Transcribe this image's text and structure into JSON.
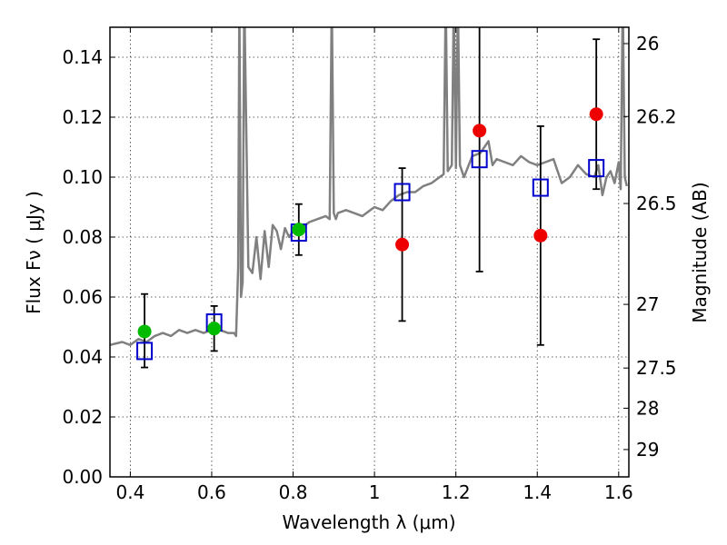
{
  "chart_data": {
    "type": "scatter",
    "xlabel": "Wavelength  λ (μm)",
    "ylabel": "Flux  Fν ( μJy )",
    "y2label": "Magnitude (AB)",
    "xlim": [
      0.35,
      1.625
    ],
    "ylim": [
      0.0,
      0.15
    ],
    "x_ticks": [
      {
        "value": 0.4,
        "label": "0.4"
      },
      {
        "value": 0.6,
        "label": "0.6"
      },
      {
        "value": 0.8,
        "label": "0.8"
      },
      {
        "value": 1.0,
        "label": "1"
      },
      {
        "value": 1.2,
        "label": "1.2"
      },
      {
        "value": 1.4,
        "label": "1.4"
      },
      {
        "value": 1.6,
        "label": "1.6"
      }
    ],
    "y_ticks": [
      {
        "value": 0.0,
        "label": "0.00"
      },
      {
        "value": 0.02,
        "label": "0.02"
      },
      {
        "value": 0.04,
        "label": "0.04"
      },
      {
        "value": 0.06,
        "label": "0.06"
      },
      {
        "value": 0.08,
        "label": "0.08"
      },
      {
        "value": 0.1,
        "label": "0.10"
      },
      {
        "value": 0.12,
        "label": "0.12"
      },
      {
        "value": 0.14,
        "label": "0.14"
      }
    ],
    "y2_ticks": [
      {
        "value": 26,
        "label": "26"
      },
      {
        "value": 26.2,
        "label": "26.2"
      },
      {
        "value": 26.5,
        "label": "26.5"
      },
      {
        "value": 27,
        "label": "27"
      },
      {
        "value": 27.5,
        "label": "27.5"
      },
      {
        "value": 28,
        "label": "28"
      },
      {
        "value": 29,
        "label": "29"
      }
    ],
    "grid": true,
    "colors": {
      "green_points": "#00bb00",
      "red_points": "#ee0000",
      "model_boxes": "#0000cc",
      "template": "#808080",
      "errorbar": "#000000"
    },
    "green_points": [
      {
        "x": 0.435,
        "y": 0.0485,
        "err_low": 0.012,
        "err_high": 0.0125
      },
      {
        "x": 0.606,
        "y": 0.0495,
        "err_low": 0.0075,
        "err_high": 0.0075
      },
      {
        "x": 0.814,
        "y": 0.0825,
        "err_low": 0.0085,
        "err_high": 0.0085
      }
    ],
    "red_points": [
      {
        "x": 1.068,
        "y": 0.0775,
        "err_low": 0.0255,
        "err_high": 0.0255
      },
      {
        "x": 1.258,
        "y": 0.1155,
        "err_low": 0.047,
        "err_high": 0.047
      },
      {
        "x": 1.408,
        "y": 0.0805,
        "err_low": 0.0365,
        "err_high": 0.0365
      },
      {
        "x": 1.545,
        "y": 0.121,
        "err_low": 0.025,
        "err_high": 0.025
      }
    ],
    "model_boxes": [
      {
        "x": 0.435,
        "y": 0.042
      },
      {
        "x": 0.606,
        "y": 0.0515
      },
      {
        "x": 0.814,
        "y": 0.0815
      },
      {
        "x": 1.068,
        "y": 0.095
      },
      {
        "x": 1.258,
        "y": 0.106
      },
      {
        "x": 1.408,
        "y": 0.0965
      },
      {
        "x": 1.545,
        "y": 0.103
      }
    ],
    "template_spectrum": {
      "x": [
        0.35,
        0.38,
        0.4,
        0.42,
        0.44,
        0.46,
        0.48,
        0.5,
        0.52,
        0.54,
        0.56,
        0.58,
        0.6,
        0.62,
        0.64,
        0.655,
        0.66,
        0.665,
        0.668,
        0.672,
        0.676,
        0.68,
        0.69,
        0.7,
        0.71,
        0.72,
        0.73,
        0.74,
        0.75,
        0.76,
        0.77,
        0.78,
        0.79,
        0.8,
        0.82,
        0.84,
        0.86,
        0.88,
        0.89,
        0.895,
        0.9,
        0.905,
        0.91,
        0.93,
        0.95,
        0.97,
        0.99,
        1.0,
        1.02,
        1.04,
        1.06,
        1.08,
        1.1,
        1.12,
        1.14,
        1.16,
        1.17,
        1.175,
        1.18,
        1.19,
        1.195,
        1.2,
        1.205,
        1.21,
        1.22,
        1.24,
        1.26,
        1.28,
        1.29,
        1.3,
        1.32,
        1.34,
        1.36,
        1.38,
        1.4,
        1.42,
        1.44,
        1.46,
        1.48,
        1.5,
        1.52,
        1.54,
        1.55,
        1.56,
        1.57,
        1.58,
        1.59,
        1.6,
        1.605,
        1.61,
        1.615,
        1.62
      ],
      "y": [
        0.044,
        0.045,
        0.044,
        0.046,
        0.045,
        0.047,
        0.048,
        0.047,
        0.049,
        0.048,
        0.049,
        0.048,
        0.049,
        0.049,
        0.048,
        0.048,
        0.047,
        0.07,
        0.16,
        0.06,
        0.065,
        0.16,
        0.07,
        0.068,
        0.08,
        0.066,
        0.082,
        0.07,
        0.084,
        0.082,
        0.076,
        0.083,
        0.08,
        0.082,
        0.083,
        0.085,
        0.086,
        0.087,
        0.086,
        0.16,
        0.088,
        0.086,
        0.088,
        0.089,
        0.088,
        0.087,
        0.089,
        0.09,
        0.089,
        0.092,
        0.094,
        0.095,
        0.095,
        0.097,
        0.098,
        0.1,
        0.101,
        0.16,
        0.102,
        0.104,
        0.16,
        0.103,
        0.16,
        0.104,
        0.1,
        0.107,
        0.108,
        0.112,
        0.104,
        0.106,
        0.105,
        0.104,
        0.107,
        0.105,
        0.104,
        0.105,
        0.106,
        0.098,
        0.1,
        0.104,
        0.101,
        0.1,
        0.104,
        0.094,
        0.1,
        0.102,
        0.098,
        0.105,
        0.096,
        0.16,
        0.1,
        0.097
      ]
    }
  }
}
